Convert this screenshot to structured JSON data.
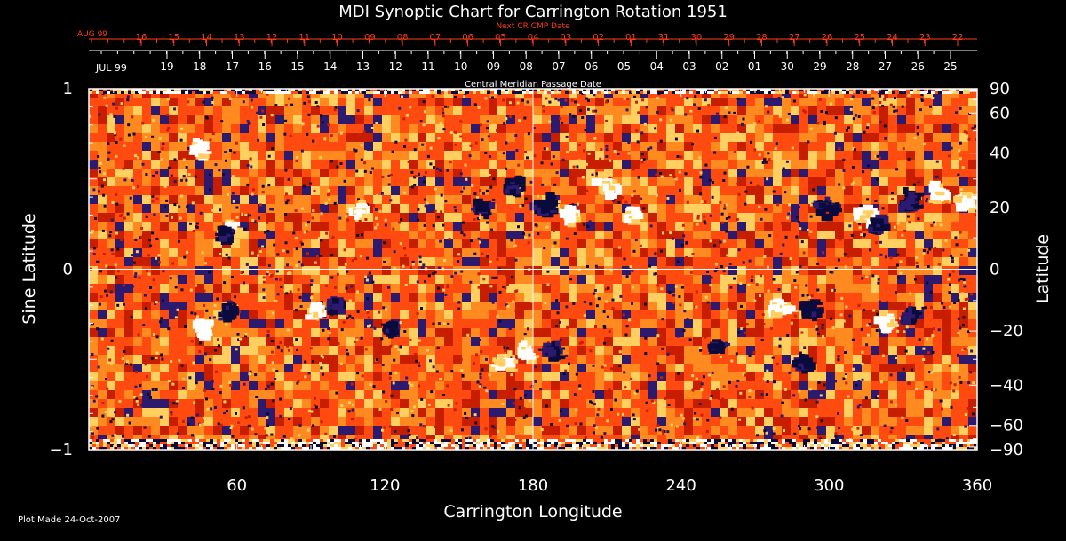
{
  "chart_data": {
    "type": "heatmap",
    "title": "MDI Synoptic Chart for Carrington Rotation 1951",
    "xlabel": "Carrington Longitude",
    "ylabel_left": "Sine Latitude",
    "ylabel_right": "Latitude",
    "xlim": [
      0,
      360
    ],
    "ylim": [
      -1,
      1
    ],
    "x_ticks": [
      60,
      120,
      180,
      240,
      300,
      360
    ],
    "y_ticks_left": [
      {
        "v": 1,
        "label": "1"
      },
      {
        "v": 0,
        "label": "0"
      },
      {
        "v": -1,
        "label": "−1"
      }
    ],
    "y_ticks_right": [
      {
        "lat": 90,
        "label": "90"
      },
      {
        "lat": 60,
        "label": "60"
      },
      {
        "lat": 40,
        "label": "40"
      },
      {
        "lat": 20,
        "label": "20"
      },
      {
        "lat": 0,
        "label": "0"
      },
      {
        "lat": -20,
        "label": "−20"
      },
      {
        "lat": -40,
        "label": "−40"
      },
      {
        "lat": -60,
        "label": "−60"
      },
      {
        "lat": -90,
        "label": "−90"
      }
    ],
    "grid": "center crosshair at longitude 180, sine latitude 0",
    "colormap": [
      "#0a0a3c",
      "#2b1a6e",
      "#c81e00",
      "#ff4a10",
      "#ff8a20",
      "#ffd060",
      "#ffffff"
    ],
    "top_axis": {
      "label": "Next CR CMP Date",
      "month_label": "AUG 99",
      "dates": [
        "16",
        "15",
        "14",
        "13",
        "12",
        "11",
        "10",
        "09",
        "08",
        "07",
        "06",
        "05",
        "04",
        "03",
        "02",
        "01",
        "31",
        "30",
        "29",
        "28",
        "27",
        "26",
        "25",
        "24",
        "23",
        "22"
      ]
    },
    "bottom_date_axis": {
      "label": "Central Meridian Passage Date",
      "month_label": "JUL 99",
      "dates": [
        "19",
        "18",
        "17",
        "16",
        "15",
        "14",
        "13",
        "12",
        "11",
        "10",
        "09",
        "08",
        "07",
        "06",
        "05",
        "04",
        "03",
        "02",
        "01",
        "30",
        "29",
        "28",
        "27",
        "26",
        "25"
      ]
    },
    "active_regions": [
      {
        "lon": 45,
        "lat": 0.66,
        "r": 0.05,
        "polarity": "positive"
      },
      {
        "lon": 58,
        "lat": 0.22,
        "r": 0.04,
        "polarity": "positive"
      },
      {
        "lon": 55,
        "lat": 0.19,
        "r": 0.05,
        "polarity": "negative"
      },
      {
        "lon": 110,
        "lat": 0.32,
        "r": 0.04,
        "polarity": "positive"
      },
      {
        "lon": 160,
        "lat": 0.34,
        "r": 0.05,
        "polarity": "negative"
      },
      {
        "lon": 172,
        "lat": 0.46,
        "r": 0.06,
        "polarity": "negative"
      },
      {
        "lon": 185,
        "lat": 0.36,
        "r": 0.06,
        "polarity": "negative"
      },
      {
        "lon": 195,
        "lat": 0.3,
        "r": 0.05,
        "polarity": "positive"
      },
      {
        "lon": 210,
        "lat": 0.46,
        "r": 0.07,
        "polarity": "positive"
      },
      {
        "lon": 220,
        "lat": 0.3,
        "r": 0.04,
        "polarity": "positive"
      },
      {
        "lon": 300,
        "lat": 0.34,
        "r": 0.06,
        "polarity": "negative"
      },
      {
        "lon": 315,
        "lat": 0.3,
        "r": 0.06,
        "polarity": "positive"
      },
      {
        "lon": 320,
        "lat": 0.24,
        "r": 0.05,
        "polarity": "negative"
      },
      {
        "lon": 333,
        "lat": 0.38,
        "r": 0.06,
        "polarity": "negative"
      },
      {
        "lon": 345,
        "lat": 0.42,
        "r": 0.06,
        "polarity": "positive"
      },
      {
        "lon": 355,
        "lat": 0.38,
        "r": 0.05,
        "polarity": "positive"
      },
      {
        "lon": 47,
        "lat": -0.33,
        "r": 0.05,
        "polarity": "positive"
      },
      {
        "lon": 57,
        "lat": -0.24,
        "r": 0.05,
        "polarity": "negative"
      },
      {
        "lon": 92,
        "lat": -0.24,
        "r": 0.04,
        "polarity": "positive"
      },
      {
        "lon": 100,
        "lat": -0.21,
        "r": 0.04,
        "polarity": "negative"
      },
      {
        "lon": 122,
        "lat": -0.33,
        "r": 0.03,
        "polarity": "negative"
      },
      {
        "lon": 168,
        "lat": -0.5,
        "r": 0.06,
        "polarity": "positive"
      },
      {
        "lon": 178,
        "lat": -0.46,
        "r": 0.05,
        "polarity": "positive"
      },
      {
        "lon": 188,
        "lat": -0.46,
        "r": 0.05,
        "polarity": "negative"
      },
      {
        "lon": 255,
        "lat": -0.43,
        "r": 0.04,
        "polarity": "negative"
      },
      {
        "lon": 280,
        "lat": -0.22,
        "r": 0.06,
        "polarity": "positive"
      },
      {
        "lon": 293,
        "lat": -0.22,
        "r": 0.05,
        "polarity": "negative"
      },
      {
        "lon": 290,
        "lat": -0.52,
        "r": 0.04,
        "polarity": "negative"
      },
      {
        "lon": 323,
        "lat": -0.3,
        "r": 0.05,
        "polarity": "positive"
      },
      {
        "lon": 333,
        "lat": -0.26,
        "r": 0.04,
        "polarity": "negative"
      }
    ]
  },
  "footer": {
    "plot_made": "Plot Made 24-Oct-2007"
  }
}
